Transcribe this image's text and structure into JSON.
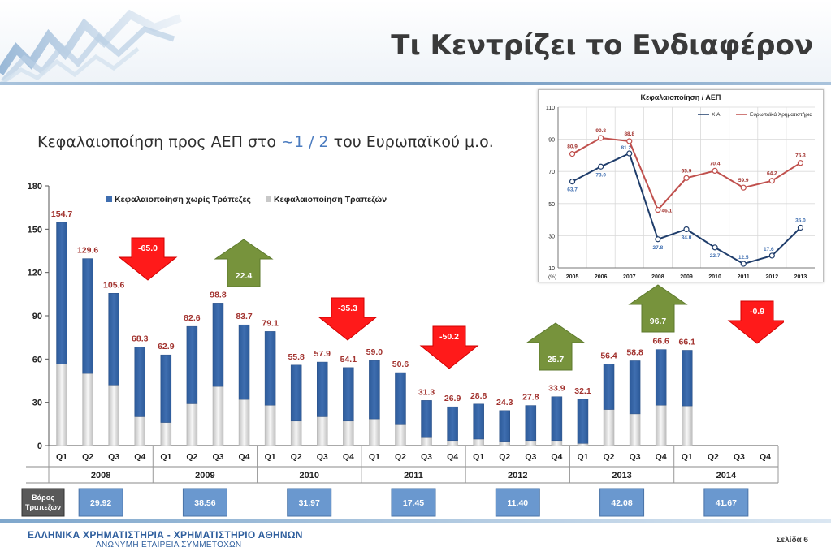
{
  "header": {
    "title": "Τι Κεντρίζει το Ενδιαφέρον"
  },
  "subtitle": {
    "before": "Κεφαλαιοποίηση προς ΑΕΠ στο ",
    "highlight": "~1 / 2",
    "after": " του Ευρωπαϊκού μ.ο."
  },
  "colors": {
    "series_ex_banks": "#3f6eb0",
    "series_banks": "#d9d9d9",
    "label_red": "#a2332f",
    "arrow_up": "#77933c",
    "arrow_down": "#ff1a1a",
    "box_blue": "#6a98cf",
    "xa_line": "#1f3d6b",
    "eu_line": "#c0504d"
  },
  "chart_data": [
    {
      "type": "bar",
      "stacked": true,
      "title": "",
      "ylim": [
        0,
        180
      ],
      "yticks": [
        0,
        30,
        60,
        90,
        120,
        150,
        180
      ],
      "grid": false,
      "legend_position": "top",
      "categories": [
        "Q1",
        "Q2",
        "Q3",
        "Q4",
        "Q1",
        "Q2",
        "Q3",
        "Q4",
        "Q1",
        "Q2",
        "Q3",
        "Q4",
        "Q1",
        "Q2",
        "Q3",
        "Q4",
        "Q1",
        "Q2",
        "Q3",
        "Q4",
        "Q1",
        "Q2",
        "Q3",
        "Q4",
        "Q1",
        "Q2",
        "Q3",
        "Q4"
      ],
      "years": [
        "2008",
        "2009",
        "2010",
        "2011",
        "2012",
        "2013",
        "2014"
      ],
      "series": [
        {
          "name": "Κεφαλαιοποίηση Τραπεζών",
          "values": [
            56.6,
            50.0,
            42.0,
            20.0,
            16.0,
            29.0,
            41.0,
            32.0,
            28.0,
            17.0,
            20.0,
            17.0,
            18.5,
            15.0,
            5.5,
            3.5,
            4.5,
            3.0,
            3.5,
            3.5,
            1.5,
            25.0,
            22.0,
            28.0,
            27.5,
            null,
            null,
            null
          ]
        },
        {
          "name": "Κεφαλαιοποίηση χωρίς Τράπεζες",
          "values": [
            98.1,
            79.6,
            63.6,
            48.3,
            46.9,
            53.6,
            57.8,
            51.7,
            51.1,
            38.8,
            37.9,
            37.1,
            40.5,
            35.6,
            25.8,
            23.4,
            24.3,
            21.3,
            24.3,
            30.4,
            30.6,
            31.4,
            36.8,
            38.6,
            38.6,
            null,
            null,
            null
          ]
        }
      ],
      "total_labels": [
        "154.7",
        "129.6",
        "105.6",
        "68.3",
        "62.9",
        "82.6",
        "98.8",
        "83.7",
        "79.1",
        "55.8",
        "57.9",
        "54.1",
        "59.0",
        "50.6",
        "31.3",
        "26.9",
        "28.8",
        "24.3",
        "27.8",
        "33.9",
        "32.1",
        "56.4",
        "58.8",
        "66.6",
        "66.1",
        "",
        "",
        ""
      ],
      "arrows": [
        {
          "year": "2008",
          "direction": "down",
          "label": "-65.0"
        },
        {
          "year": "2009",
          "direction": "up",
          "label": "22.4"
        },
        {
          "year": "2010",
          "direction": "down",
          "label": "-35.3"
        },
        {
          "year": "2011",
          "direction": "down",
          "label": "-50.2"
        },
        {
          "year": "2012",
          "direction": "up",
          "label": "25.7"
        },
        {
          "year": "2013",
          "direction": "up",
          "label": "96.7"
        },
        {
          "year": "2014",
          "direction": "down",
          "label": "-0.9"
        }
      ],
      "weights_label": "Βάρος Τραπεζών",
      "weights": [
        "29.92",
        "38.56",
        "31.97",
        "17.45",
        "11.40",
        "42.08",
        "41.67"
      ]
    },
    {
      "type": "line",
      "title": "Κεφαλαιοποίηση / ΑΕΠ",
      "unit_label": "(%)",
      "ylim": [
        10,
        110
      ],
      "yticks": [
        10,
        30,
        50,
        70,
        90,
        110
      ],
      "grid": true,
      "legend_position": "top-right",
      "x": [
        "2005",
        "2006",
        "2007",
        "2008",
        "2009",
        "2010",
        "2011",
        "2012",
        "2013"
      ],
      "series": [
        {
          "name": "Χ.Α.",
          "values": [
            63.7,
            73.0,
            81.2,
            27.8,
            34.0,
            22.7,
            12.5,
            17.6,
            35.0
          ],
          "labels": [
            "63.7",
            "73.0",
            "81.2",
            "27.8",
            "34.0",
            "22.7",
            "12.5",
            "17.6",
            "35.0"
          ]
        },
        {
          "name": "Ευρωπαϊκά Χρηματιστήρια",
          "values": [
            80.9,
            90.8,
            88.8,
            46.1,
            65.9,
            70.4,
            59.9,
            64.2,
            75.3
          ],
          "labels": [
            "80.9",
            "90.8",
            "88.8",
            "46.1",
            "65.9",
            "70.4",
            "59.9",
            "64.2",
            "75.3"
          ]
        }
      ]
    }
  ],
  "footer": {
    "company": "ΕΛΛΗΝΙΚΑ ΧΡΗΜΑΤΙΣΤΗΡΙΑ - ΧΡΗΜΑΤΙΣΤΗΡΙΟ ΑΘΗΝΩΝ",
    "company_sub": "ΑΝΩΝΥΜΗ ΕΤΑΙΡΕΙΑ ΣΥΜΜΕΤΟΧΩΝ",
    "page": "Σελίδα 6"
  }
}
